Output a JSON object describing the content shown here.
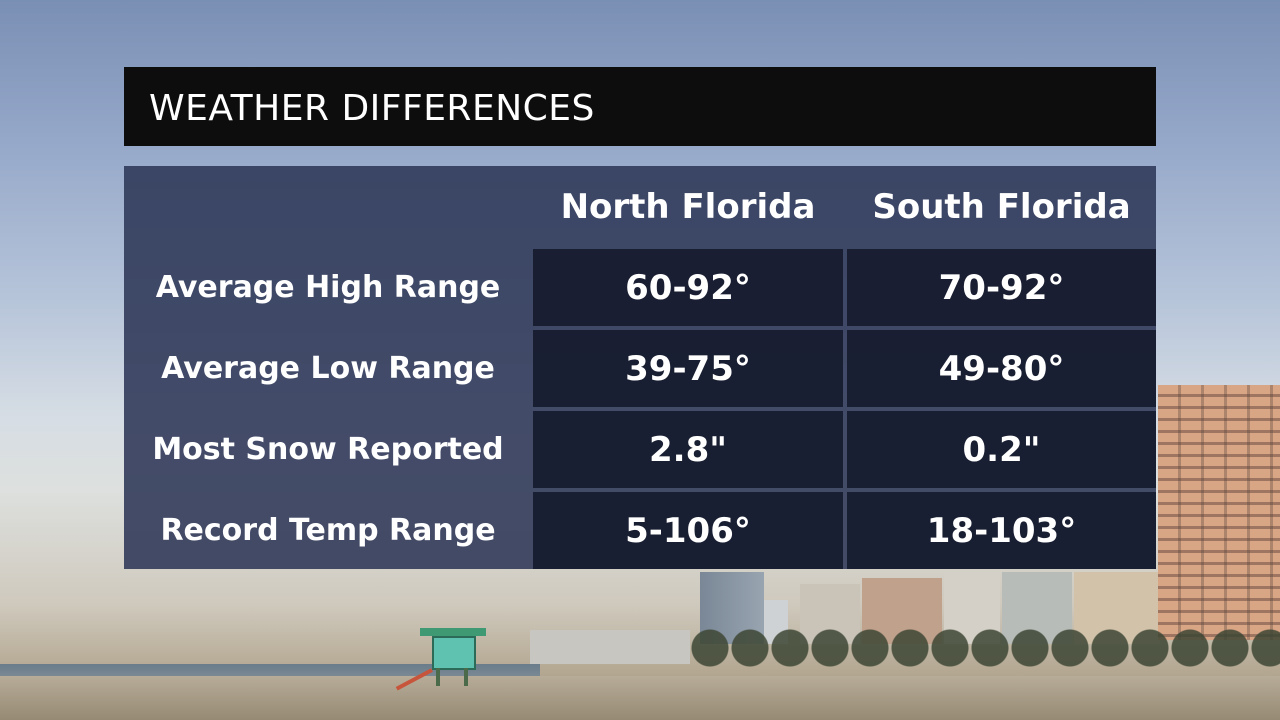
{
  "title": "WEATHER DIFFERENCES",
  "columns": [
    "North Florida",
    "South Florida"
  ],
  "rows": [
    {
      "label": "Average High Range",
      "values": [
        "60-92°",
        "70-92°"
      ]
    },
    {
      "label": "Average Low Range",
      "values": [
        "39-75°",
        "49-80°"
      ]
    },
    {
      "label": "Most Snow Reported",
      "values": [
        "2.8\"",
        "0.2\""
      ]
    },
    {
      "label": "Record Temp Range",
      "values": [
        "5-106°",
        "18-103°"
      ]
    }
  ],
  "colors": {
    "title_bar": "#0d0d0d",
    "panel": "#2e3756",
    "cell": "#161b2e",
    "text": "#ffffff"
  }
}
